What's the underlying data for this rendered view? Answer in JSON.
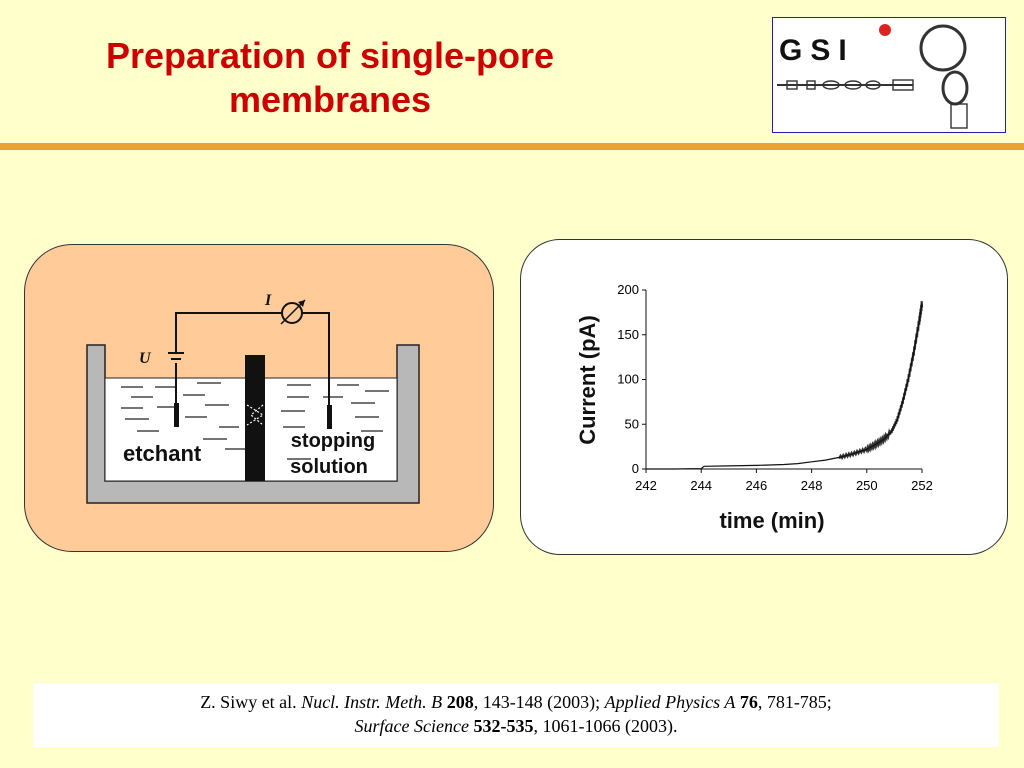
{
  "slide": {
    "title_line1": "Preparation of single-pore",
    "title_line2": "membranes",
    "logo_text": "GSI",
    "colors": {
      "background": "#ffffcc",
      "title": "#cc0000",
      "rule": "#f0a030",
      "left_panel": "#ffcc99"
    }
  },
  "diagram": {
    "current_label": "I",
    "voltage_label": "U",
    "etchant_label": "etchant",
    "stopping_label_line1": "stopping",
    "stopping_label_line2": "solution",
    "ammeter_icon": "ammeter-symbol"
  },
  "chart_data": {
    "type": "line",
    "xlabel": "time (min)",
    "ylabel": "Current (pA)",
    "xlim": [
      242,
      252
    ],
    "ylim": [
      0,
      200
    ],
    "xticks": [
      "242",
      "244",
      "246",
      "248",
      "250",
      "252"
    ],
    "yticks": [
      "0",
      "50",
      "100",
      "150",
      "200"
    ],
    "series": [
      {
        "x": [
          242,
          243,
          244,
          244.1,
          245,
          246,
          247,
          247.5,
          248,
          248.5,
          249,
          249.5,
          250,
          250.3,
          250.6,
          250.9,
          251.1,
          251.3,
          251.5,
          251.7,
          251.9,
          252
        ],
        "values": [
          0,
          0,
          0.5,
          3,
          3.5,
          4,
          5,
          6,
          8,
          10,
          13,
          17,
          22,
          27,
          33,
          42,
          55,
          75,
          100,
          130,
          165,
          185
        ]
      }
    ]
  },
  "reference": {
    "line1": [
      {
        "text": "Z. Siwy et al. ",
        "style": "normal"
      },
      {
        "text": "Nucl. Instr. Meth. B",
        "style": "italic"
      },
      {
        "text": " ",
        "style": "normal"
      },
      {
        "text": "208",
        "style": "bold"
      },
      {
        "text": ", 143-148 (2003); ",
        "style": "normal"
      },
      {
        "text": "Applied Physics A",
        "style": "italic"
      },
      {
        "text": " ",
        "style": "normal"
      },
      {
        "text": "76",
        "style": "bold"
      },
      {
        "text": ", 781-785;",
        "style": "normal"
      }
    ],
    "line2": [
      {
        "text": "Surface Science",
        "style": "italic"
      },
      {
        "text": " ",
        "style": "normal"
      },
      {
        "text": "532-535",
        "style": "bold"
      },
      {
        "text": ", 1061-1066 (2003).",
        "style": "normal"
      }
    ]
  }
}
